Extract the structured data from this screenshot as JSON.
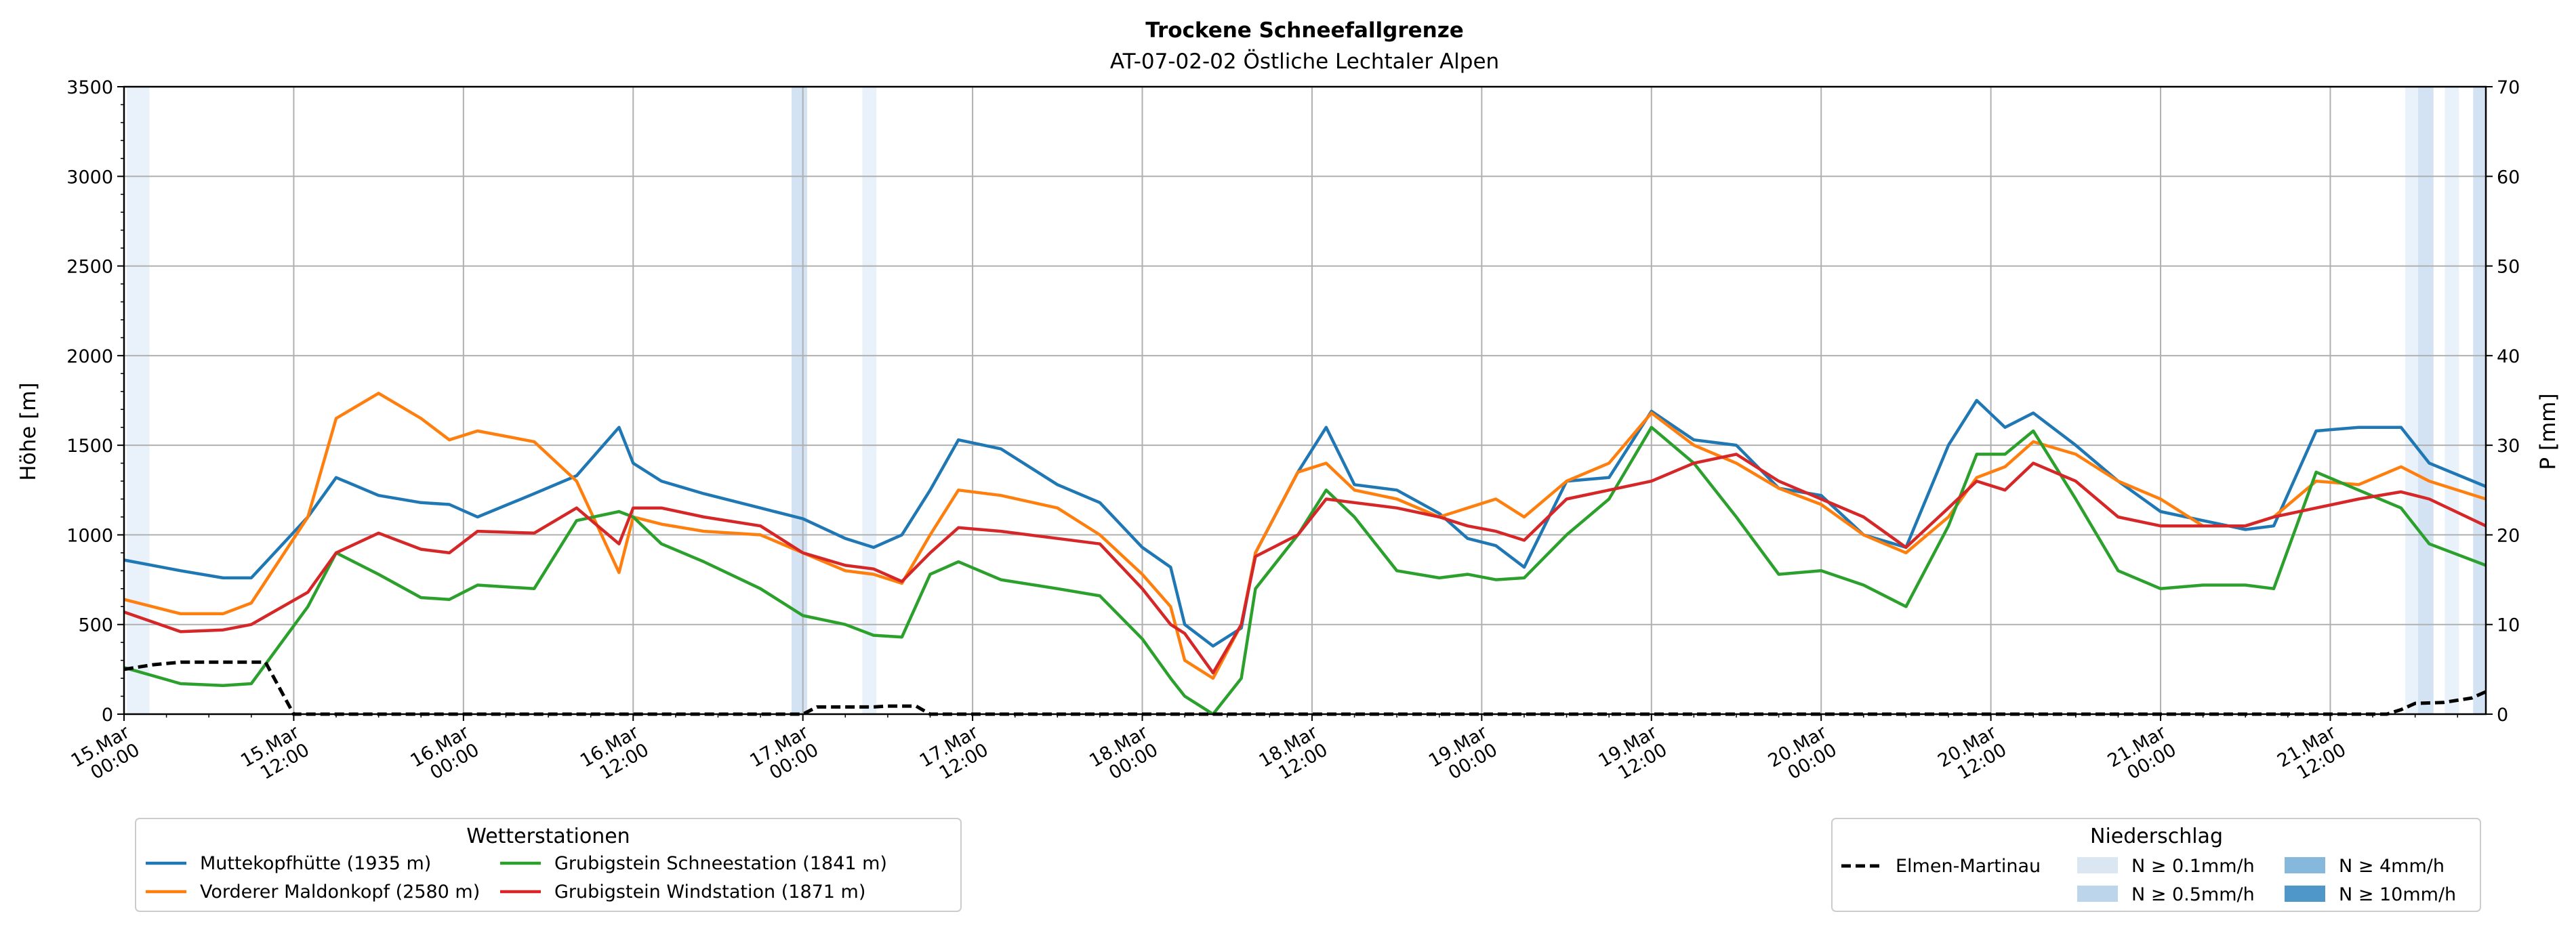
{
  "chart_data": {
    "type": "line",
    "title": "Trockene Schneefallgrenze",
    "subtitle": "AT-07-02-02 Östliche Lechtaler Alpen",
    "ylabel": "Höhe [m]",
    "y2label": "P [mm]",
    "ylim": [
      0,
      3500
    ],
    "y2lim": [
      0,
      70
    ],
    "xlim_hours": [
      0,
      167
    ],
    "yticks": [
      "0",
      "500",
      "1000",
      "1500",
      "2000",
      "2500",
      "3000",
      "3500"
    ],
    "y2ticks": [
      "0",
      "10",
      "20",
      "30",
      "40",
      "50",
      "60",
      "70"
    ],
    "xticks": [
      {
        "l1": "15.Mar",
        "l2": "00:00",
        "h": 0
      },
      {
        "l1": "15.Mar",
        "l2": "12:00",
        "h": 12
      },
      {
        "l1": "16.Mar",
        "l2": "00:00",
        "h": 24
      },
      {
        "l1": "16.Mar",
        "l2": "12:00",
        "h": 36
      },
      {
        "l1": "17.Mar",
        "l2": "00:00",
        "h": 48
      },
      {
        "l1": "17.Mar",
        "l2": "12:00",
        "h": 60
      },
      {
        "l1": "18.Mar",
        "l2": "00:00",
        "h": 72
      },
      {
        "l1": "18.Mar",
        "l2": "12:00",
        "h": 84
      },
      {
        "l1": "19.Mar",
        "l2": "00:00",
        "h": 96
      },
      {
        "l1": "19.Mar",
        "l2": "12:00",
        "h": 108
      },
      {
        "l1": "20.Mar",
        "l2": "00:00",
        "h": 120
      },
      {
        "l1": "20.Mar",
        "l2": "12:00",
        "h": 132
      },
      {
        "l1": "21.Mar",
        "l2": "00:00",
        "h": 144
      },
      {
        "l1": "21.Mar",
        "l2": "12:00",
        "h": 156
      }
    ],
    "grid": true,
    "x_hours": [
      0,
      4,
      7,
      9,
      13,
      15,
      18,
      21,
      23,
      25,
      29,
      32,
      35,
      36,
      38,
      41,
      45,
      48,
      51,
      53,
      55,
      57,
      59,
      62,
      66,
      69,
      72,
      74,
      75,
      77,
      79,
      80,
      83,
      85,
      87,
      90,
      93,
      95,
      97,
      99,
      102,
      105,
      108,
      111,
      114,
      117,
      120,
      123,
      126,
      129,
      131,
      133,
      135,
      138,
      141,
      144,
      147,
      150,
      152,
      155,
      158,
      161,
      163,
      167
    ],
    "series": [
      {
        "name": "Muttekopfhütte (1935 m)",
        "color": "#1f77b4",
        "values": [
          860,
          800,
          760,
          760,
          1100,
          1320,
          1220,
          1180,
          1170,
          1100,
          1230,
          1330,
          1600,
          1400,
          1300,
          1230,
          1150,
          1090,
          980,
          930,
          1000,
          1250,
          1530,
          1480,
          1280,
          1180,
          930,
          820,
          500,
          380,
          480,
          900,
          1350,
          1600,
          1280,
          1250,
          1120,
          980,
          940,
          820,
          1300,
          1320,
          1690,
          1530,
          1500,
          1260,
          1220,
          1000,
          930,
          1500,
          1750,
          1600,
          1680,
          1500,
          1300,
          1130,
          1080,
          1030,
          1050,
          1580,
          1600,
          1600,
          1400,
          1270
        ]
      },
      {
        "name": "Vorderer Maldonkopf (2580 m)",
        "color": "#ff7f0e",
        "values": [
          640,
          560,
          560,
          620,
          1100,
          1650,
          1790,
          1650,
          1530,
          1580,
          1520,
          1300,
          790,
          1100,
          1060,
          1020,
          1000,
          900,
          800,
          780,
          730,
          1000,
          1250,
          1220,
          1150,
          1000,
          780,
          600,
          300,
          200,
          500,
          900,
          1350,
          1400,
          1250,
          1200,
          1100,
          1150,
          1200,
          1100,
          1300,
          1400,
          1680,
          1500,
          1400,
          1260,
          1170,
          1000,
          900,
          1100,
          1320,
          1380,
          1520,
          1450,
          1300,
          1200,
          1050,
          1050,
          1100,
          1300,
          1280,
          1380,
          1300,
          1200
        ]
      },
      {
        "name": "Grubigstein Schneestation (1841 m)",
        "color": "#2ca02c",
        "values": [
          260,
          170,
          160,
          170,
          600,
          900,
          780,
          650,
          640,
          720,
          700,
          1080,
          1130,
          1100,
          950,
          850,
          700,
          550,
          500,
          440,
          430,
          780,
          850,
          750,
          700,
          660,
          420,
          200,
          100,
          0,
          200,
          700,
          1000,
          1250,
          1100,
          800,
          760,
          780,
          750,
          760,
          1000,
          1200,
          1600,
          1400,
          1100,
          780,
          800,
          720,
          600,
          1050,
          1450,
          1450,
          1580,
          1200,
          800,
          700,
          720,
          720,
          700,
          1350,
          1250,
          1150,
          950,
          830
        ]
      },
      {
        "name": "Grubigstein Windstation (1871 m)",
        "color": "#d62728",
        "values": [
          570,
          460,
          470,
          500,
          680,
          900,
          1010,
          920,
          900,
          1020,
          1010,
          1150,
          950,
          1150,
          1150,
          1100,
          1050,
          900,
          830,
          810,
          740,
          900,
          1040,
          1020,
          980,
          950,
          700,
          500,
          450,
          230,
          500,
          880,
          1000,
          1200,
          1180,
          1150,
          1100,
          1050,
          1020,
          970,
          1200,
          1250,
          1300,
          1400,
          1450,
          1300,
          1200,
          1100,
          930,
          1150,
          1300,
          1250,
          1400,
          1300,
          1100,
          1050,
          1050,
          1050,
          1100,
          1150,
          1200,
          1240,
          1200,
          1050
        ]
      }
    ],
    "precip": {
      "name": "Elmen-Martinau",
      "color": "#000000",
      "unit": "mm",
      "x_hours": [
        0,
        2,
        4,
        7,
        10,
        12,
        24,
        48,
        49,
        50,
        53,
        54,
        56,
        57,
        160,
        161,
        162,
        164,
        166,
        167
      ],
      "values": [
        5,
        5.5,
        5.8,
        5.8,
        5.8,
        0,
        0,
        0,
        0.8,
        0.8,
        0.8,
        0.9,
        0.9,
        0,
        0,
        0.5,
        1.2,
        1.3,
        1.8,
        2.5
      ]
    },
    "precip_shading": [
      {
        "from_h": 0.2,
        "to_h": 1.8,
        "class": "0.1"
      },
      {
        "from_h": 47.2,
        "to_h": 48.3,
        "class": "0.5"
      },
      {
        "from_h": 52.2,
        "to_h": 53.2,
        "class": "0.1"
      },
      {
        "from_h": 161.3,
        "to_h": 162.2,
        "class": "0.1"
      },
      {
        "from_h": 162.2,
        "to_h": 163.3,
        "class": "0.5"
      },
      {
        "from_h": 164.1,
        "to_h": 165.1,
        "class": "0.1"
      },
      {
        "from_h": 166.1,
        "to_h": 167,
        "class": "0.5"
      }
    ],
    "legend_stations": {
      "title": "Wetterstationen",
      "placement": "bottom-left",
      "entries": [
        {
          "label": "Muttekopfhütte (1935 m)",
          "color": "#1f77b4"
        },
        {
          "label": "Vorderer Maldonkopf (2580 m)",
          "color": "#ff7f0e"
        },
        {
          "label": "Grubigstein Schneestation (1841 m)",
          "color": "#2ca02c"
        },
        {
          "label": "Grubigstein Windstation (1871 m)",
          "color": "#d62728"
        }
      ]
    },
    "legend_precip": {
      "title": "Niederschlag",
      "placement": "bottom-right",
      "line_label": "Elmen-Martinau",
      "entries": [
        {
          "label": "N ≥ 0.1mm/h",
          "color": "#dae6f2"
        },
        {
          "label": "N ≥ 0.5mm/h",
          "color": "#bdd5ea"
        },
        {
          "label": "N ≥ 4mm/h",
          "color": "#86b8dc"
        },
        {
          "label": "N ≥ 10mm/h",
          "color": "#4f97c8"
        }
      ]
    },
    "shade_colors": {
      "0.1": "#e9f1fb",
      "0.5": "#d3e3f3"
    }
  }
}
